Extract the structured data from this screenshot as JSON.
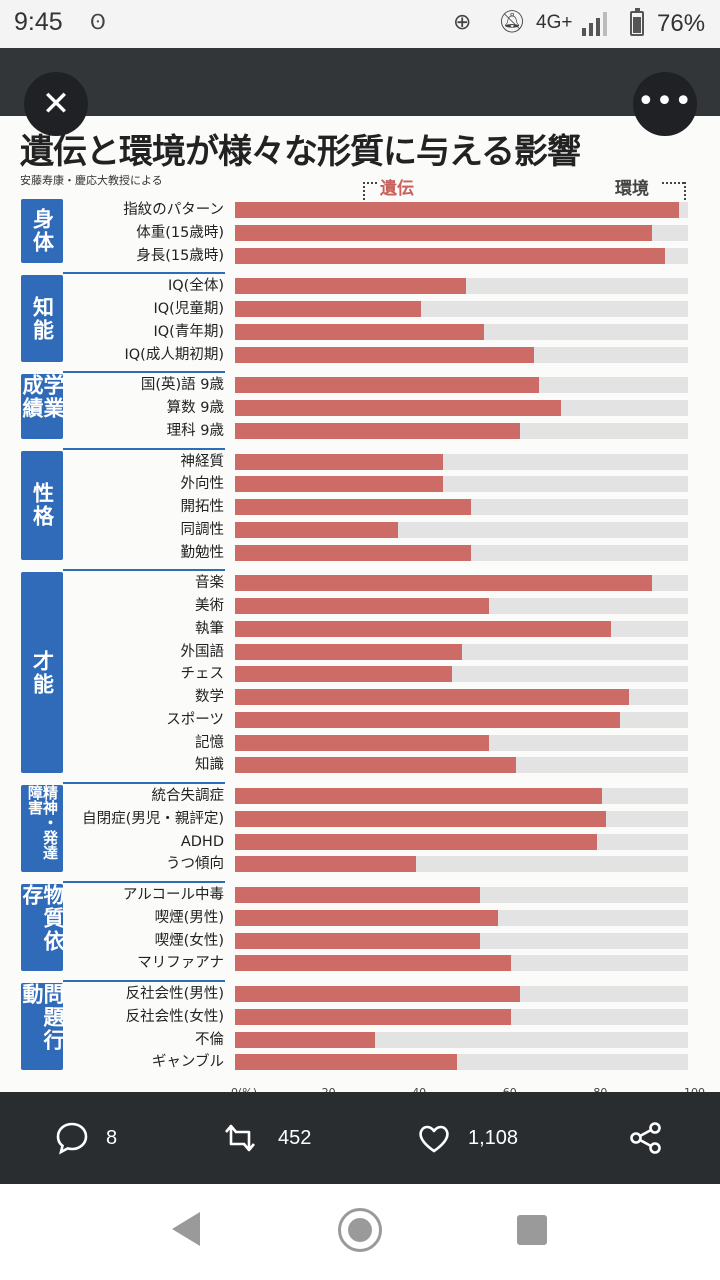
{
  "status_bar": {
    "time": "9:45",
    "network": "4G+",
    "battery_percent": "76%",
    "battery_level": 0.76,
    "icons": [
      "nfc-icon",
      "data-saver-icon",
      "mute-icon",
      "signal-icon",
      "battery-icon"
    ]
  },
  "viewer": {
    "close_label": "✕",
    "more_label": "•••"
  },
  "image": {
    "title": "遺伝と環境が様々な形質に与える影響",
    "source": "安藤寿康・慶応大教授による",
    "legend_left": "遺伝",
    "legend_right": "環境"
  },
  "chart_data": {
    "type": "bar",
    "orientation": "horizontal",
    "title": "遺伝と環境が様々な形質に与える影響",
    "subtitle": "安藤寿康・慶応大教授による",
    "series": [
      {
        "name": "遺伝",
        "color": "#cd6c66"
      },
      {
        "name": "環境",
        "color": "#e3e3e3"
      }
    ],
    "xlim": [
      0,
      100
    ],
    "x_ticks": [
      "0(%)",
      "20",
      "40",
      "60",
      "80",
      "100"
    ],
    "groups": [
      {
        "category": "身体",
        "items": [
          {
            "label": "指紋のパターン",
            "value": 98
          },
          {
            "label": "体重(15歳時)",
            "value": 92
          },
          {
            "label": "身長(15歳時)",
            "value": 95
          }
        ]
      },
      {
        "category": "知能",
        "items": [
          {
            "label": "IQ(全体)",
            "value": 51
          },
          {
            "label": "IQ(児童期)",
            "value": 41
          },
          {
            "label": "IQ(青年期)",
            "value": 55
          },
          {
            "label": "IQ(成人期初期)",
            "value": 66
          }
        ]
      },
      {
        "category": "学業成績",
        "items": [
          {
            "label": "国(英)語 9歳",
            "value": 67
          },
          {
            "label": "算数 9歳",
            "value": 72
          },
          {
            "label": "理科 9歳",
            "value": 63
          }
        ]
      },
      {
        "category": "性格",
        "items": [
          {
            "label": "神経質",
            "value": 46
          },
          {
            "label": "外向性",
            "value": 46
          },
          {
            "label": "開拓性",
            "value": 52
          },
          {
            "label": "同調性",
            "value": 36
          },
          {
            "label": "勤勉性",
            "value": 52
          }
        ]
      },
      {
        "category": "才能",
        "items": [
          {
            "label": "音楽",
            "value": 92
          },
          {
            "label": "美術",
            "value": 56
          },
          {
            "label": "執筆",
            "value": 83
          },
          {
            "label": "外国語",
            "value": 50
          },
          {
            "label": "チェス",
            "value": 48
          },
          {
            "label": "数学",
            "value": 87
          },
          {
            "label": "スポーツ",
            "value": 85
          },
          {
            "label": "記憶",
            "value": 56
          },
          {
            "label": "知識",
            "value": 62
          }
        ]
      },
      {
        "category": "精神・発達障害",
        "items": [
          {
            "label": "統合失調症",
            "value": 81
          },
          {
            "label": "自閉症(男児・親評定)",
            "value": 82
          },
          {
            "label": "ADHD",
            "value": 80
          },
          {
            "label": "うつ傾向",
            "value": 40
          }
        ]
      },
      {
        "category": "物質依存",
        "items": [
          {
            "label": "アルコール中毒",
            "value": 54
          },
          {
            "label": "喫煙(男性)",
            "value": 58
          },
          {
            "label": "喫煙(女性)",
            "value": 54
          },
          {
            "label": "マリファアナ",
            "value": 61
          }
        ]
      },
      {
        "category": "問題行動",
        "items": [
          {
            "label": "反社会性(男性)",
            "value": 63
          },
          {
            "label": "反社会性(女性)",
            "value": 61
          },
          {
            "label": "不倫",
            "value": 31
          },
          {
            "label": "ギャンブル",
            "value": 49
          }
        ]
      }
    ]
  },
  "social": {
    "replies": "8",
    "retweets": "452",
    "likes": "1,108"
  }
}
